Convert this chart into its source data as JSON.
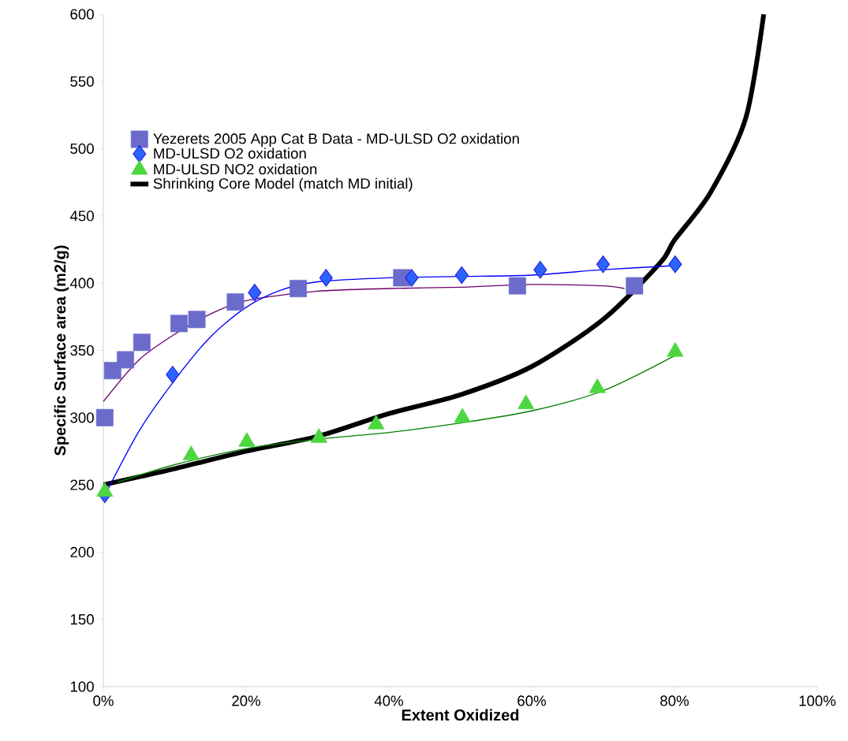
{
  "chart_data": {
    "type": "scatter",
    "xlabel": "Extent Oxidized",
    "ylabel": "Specific Surface area (m2/g)",
    "xlim": [
      0,
      100
    ],
    "ylim": [
      100,
      600
    ],
    "xticks": [
      {
        "value": 0,
        "label": "0%"
      },
      {
        "value": 20,
        "label": "20%"
      },
      {
        "value": 40,
        "label": "40%"
      },
      {
        "value": 60,
        "label": "60%"
      },
      {
        "value": 80,
        "label": "80%"
      },
      {
        "value": 100,
        "label": "100%"
      }
    ],
    "yticks": [
      100,
      150,
      200,
      250,
      300,
      350,
      400,
      450,
      500,
      550,
      600
    ],
    "legend": "top left",
    "grid": false,
    "series": [
      {
        "name": "Yezerets 2005 App Cat B  Data - MD-ULSD O2 oxidation",
        "marker": "square",
        "color": "#6b6bcc",
        "x": [
          0.2,
          1.3,
          3.1,
          5.4,
          10.6,
          13.1,
          18.5,
          27.3,
          41.8,
          58,
          74.4
        ],
        "values": [
          300,
          335,
          343,
          356,
          370,
          373,
          386,
          396,
          404,
          398,
          398
        ]
      },
      {
        "name": "MD-ULSD O2 oxidation",
        "marker": "diamond",
        "color": "#2e62ff",
        "x": [
          0.2,
          9.7,
          21.2,
          31.2,
          43.2,
          50.2,
          61.2,
          70,
          80.1
        ],
        "values": [
          243,
          332,
          393,
          404,
          404,
          406,
          410,
          414,
          414
        ]
      },
      {
        "name": "MD-ULSD NO2 oxidation",
        "marker": "triangle",
        "color": "#4cd63f",
        "x": [
          0.2,
          12.3,
          20.1,
          30.2,
          38.2,
          50.3,
          59.2,
          69.2,
          80.1
        ],
        "values": [
          245,
          272,
          282,
          285,
          295,
          300,
          310,
          322,
          349
        ]
      },
      {
        "name": "Shrinking Core Model (match MD initial)",
        "type": "line",
        "marker": "none",
        "line_style": "solid",
        "color": "#000000",
        "x": [
          0,
          5,
          10,
          20,
          30,
          40,
          50,
          60,
          70,
          78,
          80,
          85,
          90,
          92.5
        ],
        "values": [
          250,
          256,
          262,
          275,
          286,
          303,
          317,
          338,
          373,
          415,
          432,
          467,
          523,
          600
        ]
      },
      {
        "type": "line",
        "marker": "none",
        "line_style": "solid",
        "color": "#6b006b",
        "x": [
          0,
          5,
          10,
          15,
          20,
          30,
          40,
          50,
          60,
          70,
          73
        ],
        "values": [
          312,
          343,
          362,
          377,
          387,
          394,
          396,
          397,
          399,
          398,
          396
        ]
      },
      {
        "type": "line",
        "marker": "none",
        "line_style": "solid",
        "color": "#0000ff",
        "x": [
          0,
          5,
          10,
          15,
          20,
          25,
          30,
          40,
          50,
          60,
          70,
          80
        ],
        "values": [
          240,
          290,
          328,
          360,
          382,
          395,
          401,
          404,
          405,
          406,
          410,
          413
        ]
      },
      {
        "type": "line",
        "marker": "none",
        "line_style": "solid",
        "color": "#008000",
        "x": [
          2,
          10,
          20,
          30,
          40,
          50,
          60,
          70,
          80
        ],
        "values": [
          252,
          265,
          277,
          284,
          289,
          296,
          305,
          320,
          346
        ]
      }
    ]
  }
}
